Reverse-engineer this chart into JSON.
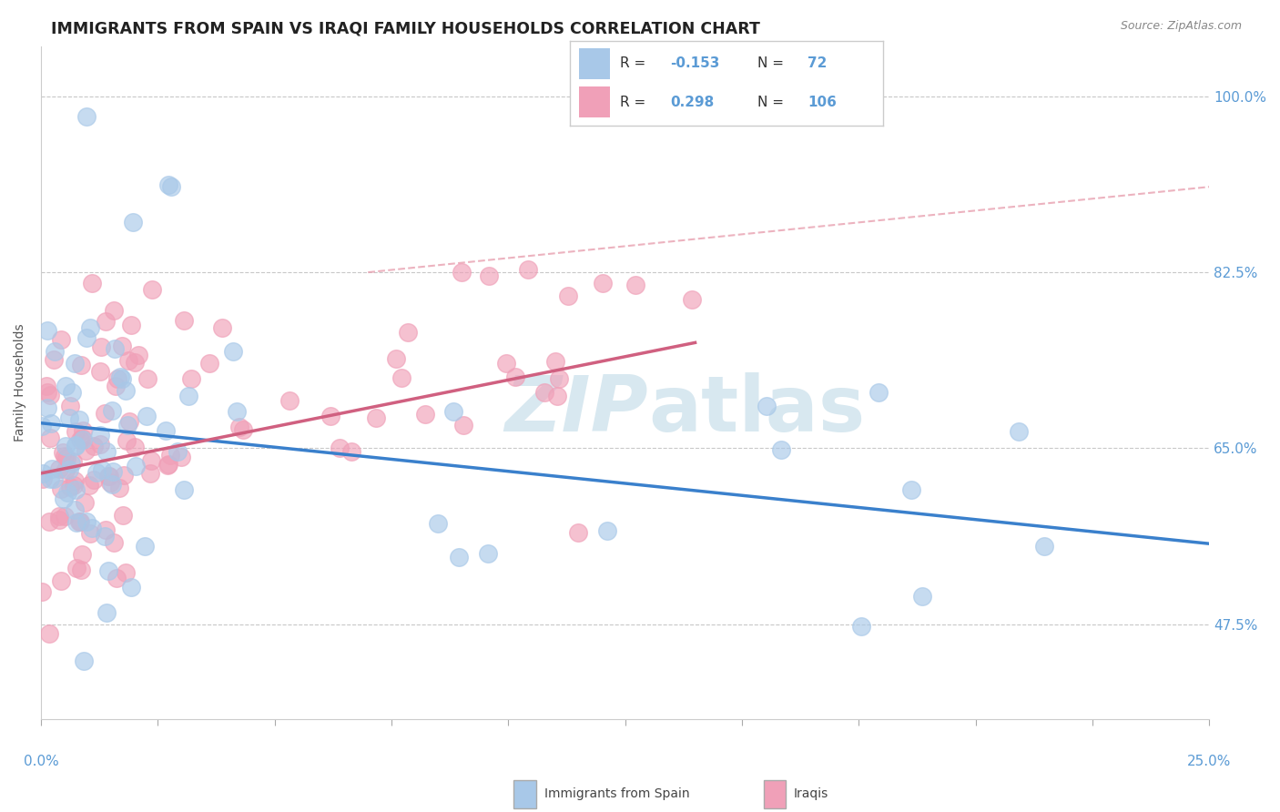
{
  "title": "IMMIGRANTS FROM SPAIN VS IRAQI FAMILY HOUSEHOLDS CORRELATION CHART",
  "source": "Source: ZipAtlas.com",
  "ylabel": "Family Households",
  "xmin": 0.0,
  "xmax": 25.0,
  "ymin": 38.0,
  "ymax": 105.0,
  "yticks": [
    47.5,
    65.0,
    82.5,
    100.0
  ],
  "color_spain": "#a8c8e8",
  "color_iraq": "#f0a0b8",
  "color_line_spain": "#3a80cc",
  "color_line_iraq": "#d06080",
  "color_dashed": "#e8a0b0",
  "color_axis_labels": "#5b9bd5",
  "color_grid": "#c8c8c8",
  "watermark_color": "#d8e8f0",
  "spain_trend_x0": 0.0,
  "spain_trend_y0": 67.5,
  "spain_trend_x1": 25.0,
  "spain_trend_y1": 55.5,
  "iraq_trend_x0": 0.0,
  "iraq_trend_y0": 62.5,
  "iraq_trend_x1": 14.0,
  "iraq_trend_y1": 75.5,
  "dashed_x0": 7.0,
  "dashed_y0": 82.5,
  "dashed_x1": 25.0,
  "dashed_y1": 91.0
}
